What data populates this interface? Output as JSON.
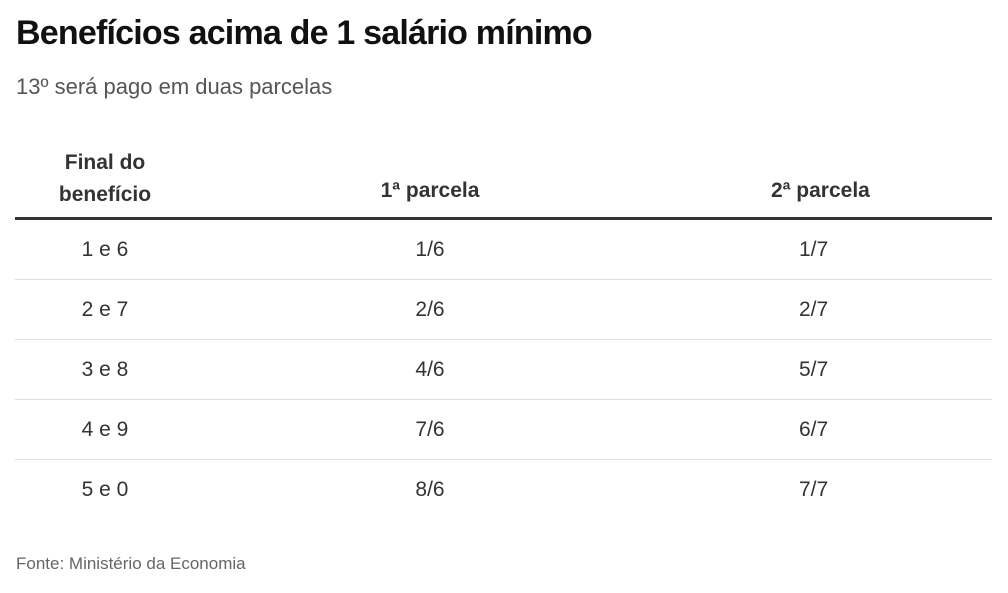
{
  "title": "Benefícios acima de 1 salário mínimo",
  "subtitle": "13º será pago em duas parcelas",
  "table": {
    "headers": [
      "Final do\nbenefício",
      "1ª parcela",
      "2ª parcela"
    ],
    "rows": [
      [
        "1 e 6",
        "1/6",
        "1/7"
      ],
      [
        "2 e 7",
        "2/6",
        "2/7"
      ],
      [
        "3 e 8",
        "4/6",
        "5/7"
      ],
      [
        "4 e 9",
        "7/6",
        "6/7"
      ],
      [
        "5 e 0",
        "8/6",
        "7/7"
      ]
    ]
  },
  "source": "Fonte: Ministério da Economia",
  "colors": {
    "title": "#111111",
    "subtitle": "#555555",
    "header_rule": "#333333",
    "row_rule": "#dddddd",
    "source": "#666666"
  }
}
